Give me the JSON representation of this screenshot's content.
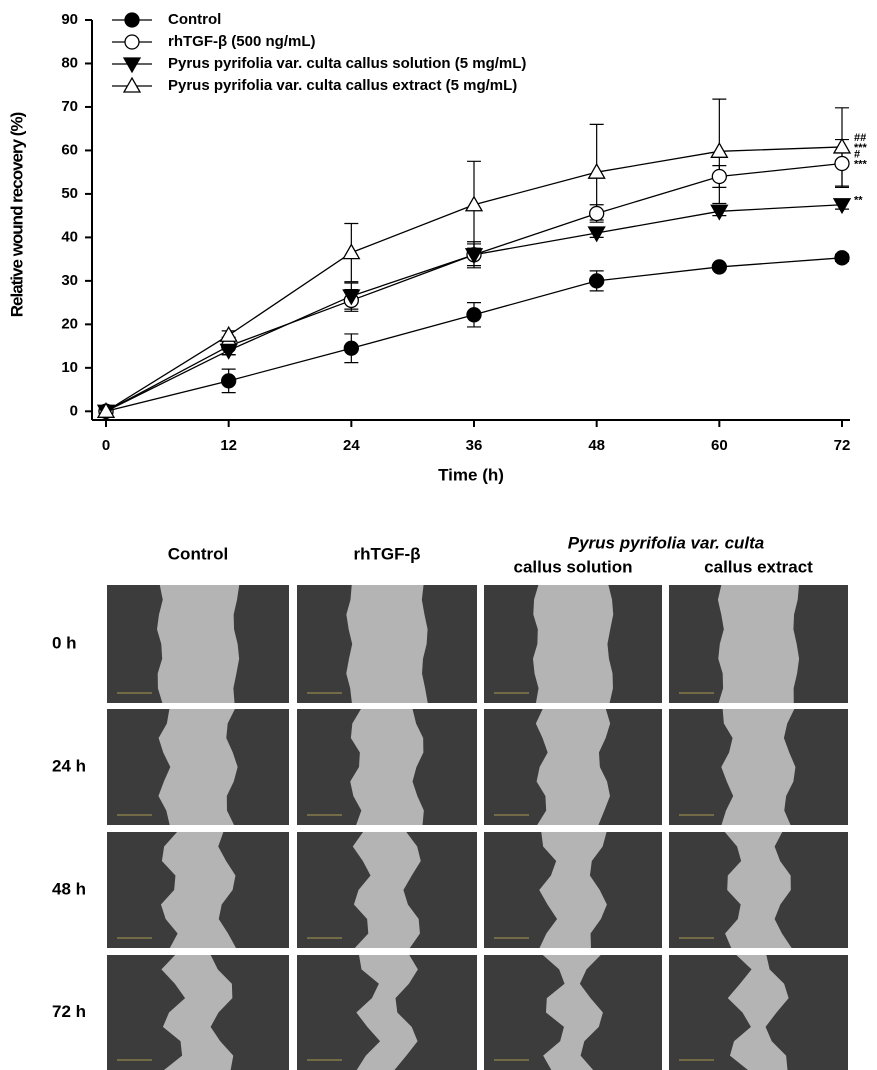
{
  "chart_data": {
    "type": "line",
    "x_label": "Time (h)",
    "y_label": "Relative wound recovery (%)",
    "x": [
      0,
      12,
      24,
      36,
      48,
      60,
      72
    ],
    "xlim": [
      -2,
      74
    ],
    "xticks": [
      0,
      12,
      24,
      36,
      48,
      60,
      72
    ],
    "ylim": [
      -2,
      90
    ],
    "yticks": [
      0,
      10,
      20,
      30,
      40,
      50,
      60,
      70,
      80,
      90
    ],
    "grid": false,
    "legend": "upper left",
    "series": [
      {
        "name": "Control",
        "color": "#000000",
        "marker": "circle",
        "filled": true,
        "values": [
          0,
          7,
          14.5,
          22.2,
          30,
          33.2,
          35.3
        ],
        "errors": [
          0.5,
          2.7,
          3.3,
          2.8,
          2.3,
          0.5,
          0.8
        ]
      },
      {
        "name": "rhTGF-β (500 ng/mL)",
        "color": "#000000",
        "marker": "circle",
        "filled": false,
        "values": [
          0,
          15,
          25.5,
          36,
          45.5,
          54,
          57
        ],
        "errors": [
          0.5,
          2,
          2.5,
          3,
          2,
          2.5,
          5.5
        ],
        "annotations": [
          "#",
          "***"
        ]
      },
      {
        "name": "Pyrus pyrifolia var. culta callus solution (5 mg/mL)",
        "color": "#000000",
        "marker": "triangle-down",
        "filled": true,
        "values": [
          0,
          14,
          26.5,
          36,
          41,
          46,
          47.5
        ],
        "errors": [
          0.5,
          1,
          3,
          2.5,
          1,
          1,
          1
        ],
        "annotations": [
          "**"
        ]
      },
      {
        "name": "Pyrus pyrifolia var. culta callus extract (5 mg/mL)",
        "color": "#000000",
        "marker": "triangle-up",
        "filled": false,
        "values": [
          0,
          17.5,
          36.5,
          47.5,
          55,
          59.8,
          60.8
        ],
        "errors": [
          0.5,
          1,
          6.7,
          10,
          11,
          12,
          9
        ],
        "annotations": [
          "##",
          "***"
        ]
      }
    ]
  },
  "panel_grid": {
    "column_headers": [
      "Control",
      "rhTGF-β",
      "callus solution",
      "callus extract"
    ],
    "group_header": "Pyrus pyrifolia  var. culta",
    "row_labels": [
      "0 h",
      "24 h",
      "48 h",
      "72 h"
    ]
  }
}
